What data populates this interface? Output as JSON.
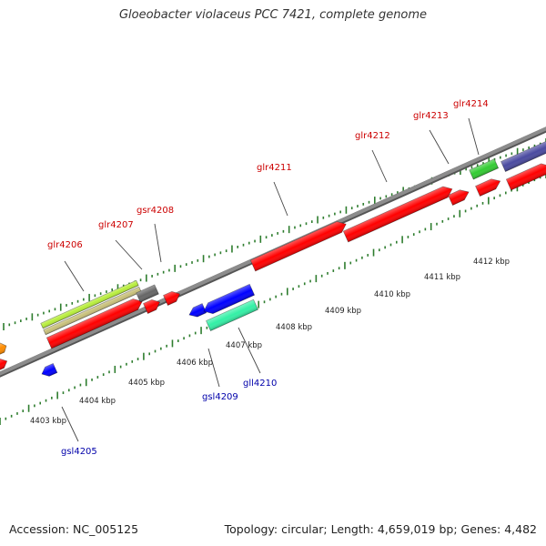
{
  "title": "Gloeobacter violaceus PCC 7421, complete genome",
  "footer": {
    "accession_label": "Accession: NC_005125",
    "summary_label": "Topology: circular; Length: 4,659,019 bp; Genes: 4,482"
  },
  "colors": {
    "backbone": "#8c8c8c",
    "ticks": "#2e7d2e",
    "tick_label": "#222222",
    "upper_gene_label": "#cc0000",
    "lower_gene_label": "#0000aa",
    "leader": "#444444"
  },
  "kbp_labels": [
    "4403 kbp",
    "4404 kbp",
    "4405 kbp",
    "4406 kbp",
    "4407 kbp",
    "4408 kbp",
    "4409 kbp",
    "4410 kbp",
    "4411 kbp",
    "4412 kbp"
  ],
  "genes": [
    {
      "name": "gsl4205",
      "strand": "minus",
      "color": "#0000ff",
      "labeled": true
    },
    {
      "name": "glr4206",
      "strand": "plus",
      "color": "#ff0000",
      "labeled": true
    },
    {
      "name": "glr4207",
      "strand": "plus",
      "color": "#ff0000",
      "labeled": true
    },
    {
      "name": "gsr4208",
      "strand": "plus",
      "color": "#ff0000",
      "labeled": true
    },
    {
      "name": "gsl4209",
      "strand": "minus",
      "color": "#0000ff",
      "labeled": true
    },
    {
      "name": "gll4210",
      "strand": "minus",
      "color": "#0000ff",
      "labeled": true
    },
    {
      "name": "glr4211",
      "strand": "plus",
      "color": "#ff0000",
      "labeled": true
    },
    {
      "name": "glr4212",
      "strand": "plus",
      "color": "#ff0000",
      "labeled": true
    },
    {
      "name": "glr4213",
      "strand": "plus",
      "color": "#ff0000",
      "labeled": true
    },
    {
      "name": "glr4214",
      "strand": "plus",
      "color": "#ff0000",
      "labeled": true
    },
    {
      "name": "gene-left-edge-orange",
      "strand": "plus",
      "color": "#ff8c00",
      "labeled": false
    },
    {
      "name": "gene-left-edge-red",
      "strand": "plus",
      "color": "#ff0000",
      "labeled": false
    },
    {
      "name": "gene-right-edge-red",
      "strand": "plus",
      "color": "#ff0000",
      "labeled": false
    }
  ],
  "features": [
    {
      "name": "rna-feature-yellowgreen",
      "color": "#b8ee3c"
    },
    {
      "name": "rna-feature-khaki",
      "color": "#c8c07a"
    },
    {
      "name": "feature-gray",
      "color": "#666666"
    },
    {
      "name": "feature-aquamarine",
      "color": "#33f0a6"
    },
    {
      "name": "feature-green",
      "color": "#33cc33"
    },
    {
      "name": "feature-slateblue",
      "color": "#4a4aa0"
    }
  ]
}
